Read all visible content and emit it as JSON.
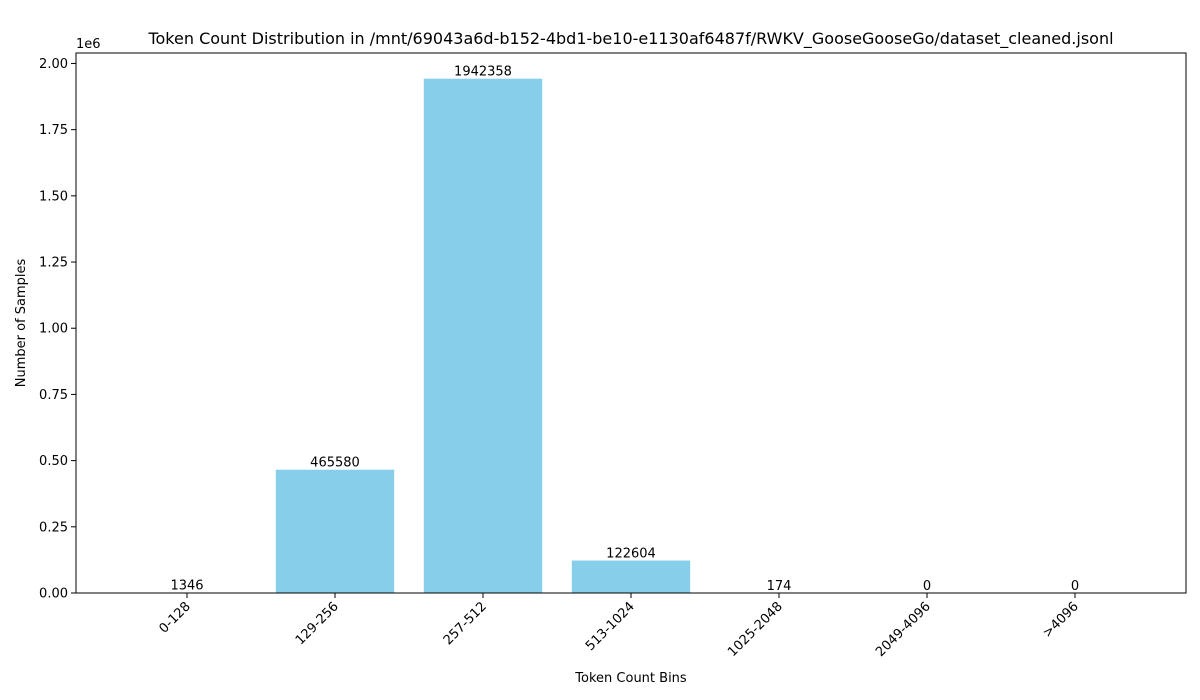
{
  "chart_data": {
    "type": "bar",
    "title": "Token Count Distribution in /mnt/69043a6d-b152-4bd1-be10-e1130af6487f/RWKV_GooseGooseGo/dataset_cleaned.jsonl",
    "xlabel": "Token Count Bins",
    "ylabel": "Number of Samples",
    "y_offset_label": "1e6",
    "categories": [
      "0-128",
      "129-256",
      "257-512",
      "513-1024",
      "1025-2048",
      "2049-4096",
      ">4096"
    ],
    "values": [
      1346,
      465580,
      1942358,
      122604,
      174,
      0,
      0
    ],
    "value_labels": [
      "1346",
      "465580",
      "1942358",
      "122604",
      "174",
      "0",
      "0"
    ],
    "ylim": [
      0,
      2039476
    ],
    "yticks": [
      0,
      250000,
      500000,
      750000,
      1000000,
      1250000,
      1500000,
      1750000,
      2000000
    ],
    "ytick_labels": [
      "0.00",
      "0.25",
      "0.50",
      "0.75",
      "1.00",
      "1.25",
      "1.50",
      "1.75",
      "2.00"
    ],
    "bar_color": "#87ceeb",
    "grid": false,
    "legend": false
  }
}
